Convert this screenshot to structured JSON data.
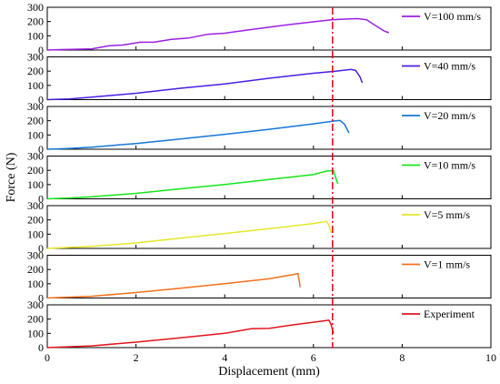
{
  "chart_data": {
    "type": "line",
    "layout": "stacked-panels",
    "xlabel": "Displacement (mm)",
    "ylabel": "Force (N)",
    "xlim": [
      0,
      10
    ],
    "ylim": [
      0,
      300
    ],
    "xticks": [
      0,
      2,
      4,
      6,
      8,
      10
    ],
    "yticks": [
      0,
      100,
      200,
      300
    ],
    "grid": false,
    "legend_position": "top-right of each panel",
    "reference_line": {
      "x": 6.43,
      "style": "dash-dot",
      "color": "#e8000b"
    },
    "panels": [
      {
        "name": "V=100 mm/s",
        "color": "#9b20e0",
        "points": [
          [
            0,
            0
          ],
          [
            0.3,
            3
          ],
          [
            1.0,
            8
          ],
          [
            1.4,
            30
          ],
          [
            1.7,
            35
          ],
          [
            2.1,
            55
          ],
          [
            2.4,
            55
          ],
          [
            2.8,
            75
          ],
          [
            3.2,
            85
          ],
          [
            3.6,
            110
          ],
          [
            4.0,
            118
          ],
          [
            4.5,
            140
          ],
          [
            5.0,
            160
          ],
          [
            5.5,
            180
          ],
          [
            6.0,
            198
          ],
          [
            6.4,
            212
          ],
          [
            6.8,
            218
          ],
          [
            7.0,
            220
          ],
          [
            7.2,
            212
          ],
          [
            7.4,
            172
          ],
          [
            7.6,
            132
          ],
          [
            7.7,
            122
          ]
        ]
      },
      {
        "name": "V=40 mm/s",
        "color": "#4a1de0",
        "points": [
          [
            0,
            0
          ],
          [
            0.5,
            5
          ],
          [
            1.0,
            18
          ],
          [
            2.0,
            45
          ],
          [
            3.0,
            80
          ],
          [
            4.0,
            110
          ],
          [
            5.0,
            150
          ],
          [
            6.0,
            185
          ],
          [
            6.5,
            200
          ],
          [
            6.85,
            212
          ],
          [
            6.95,
            205
          ],
          [
            7.05,
            160
          ],
          [
            7.1,
            118
          ]
        ]
      },
      {
        "name": "V=20 mm/s",
        "color": "#1676d6",
        "points": [
          [
            0,
            0
          ],
          [
            0.5,
            6
          ],
          [
            1.0,
            15
          ],
          [
            2.0,
            40
          ],
          [
            3.0,
            72
          ],
          [
            4.0,
            105
          ],
          [
            5.0,
            140
          ],
          [
            6.0,
            178
          ],
          [
            6.5,
            200
          ],
          [
            6.6,
            202
          ],
          [
            6.7,
            175
          ],
          [
            6.8,
            115
          ]
        ]
      },
      {
        "name": "V=10 mm/s",
        "color": "#17e51a",
        "points": [
          [
            0,
            0
          ],
          [
            0.5,
            6
          ],
          [
            1.0,
            14
          ],
          [
            2.0,
            38
          ],
          [
            3.0,
            70
          ],
          [
            4.0,
            100
          ],
          [
            5.0,
            135
          ],
          [
            6.0,
            170
          ],
          [
            6.3,
            195
          ],
          [
            6.45,
            198
          ],
          [
            6.5,
            150
          ],
          [
            6.55,
            105
          ]
        ]
      },
      {
        "name": "V=5 mm/s",
        "color": "#e6e62a",
        "points": [
          [
            0,
            0
          ],
          [
            1.0,
            14
          ],
          [
            2.0,
            38
          ],
          [
            3.0,
            72
          ],
          [
            4.0,
            105
          ],
          [
            5.0,
            138
          ],
          [
            6.0,
            175
          ],
          [
            6.3,
            190
          ],
          [
            6.35,
            160
          ],
          [
            6.4,
            108
          ]
        ]
      },
      {
        "name": "V=1 mm/s",
        "color": "#f0701a",
        "points": [
          [
            0,
            0
          ],
          [
            1.0,
            12
          ],
          [
            2.0,
            38
          ],
          [
            3.0,
            68
          ],
          [
            4.0,
            100
          ],
          [
            5.0,
            135
          ],
          [
            5.5,
            162
          ],
          [
            5.65,
            172
          ],
          [
            5.68,
            120
          ],
          [
            5.7,
            75
          ]
        ]
      },
      {
        "name": "Experiment",
        "color": "#e0141e",
        "points": [
          [
            0,
            0
          ],
          [
            1.0,
            12
          ],
          [
            2.0,
            38
          ],
          [
            3.0,
            68
          ],
          [
            4.0,
            100
          ],
          [
            4.6,
            132
          ],
          [
            5.0,
            135
          ],
          [
            5.5,
            158
          ],
          [
            6.0,
            178
          ],
          [
            6.35,
            192
          ],
          [
            6.4,
            160
          ],
          [
            6.45,
            100
          ]
        ]
      }
    ]
  }
}
